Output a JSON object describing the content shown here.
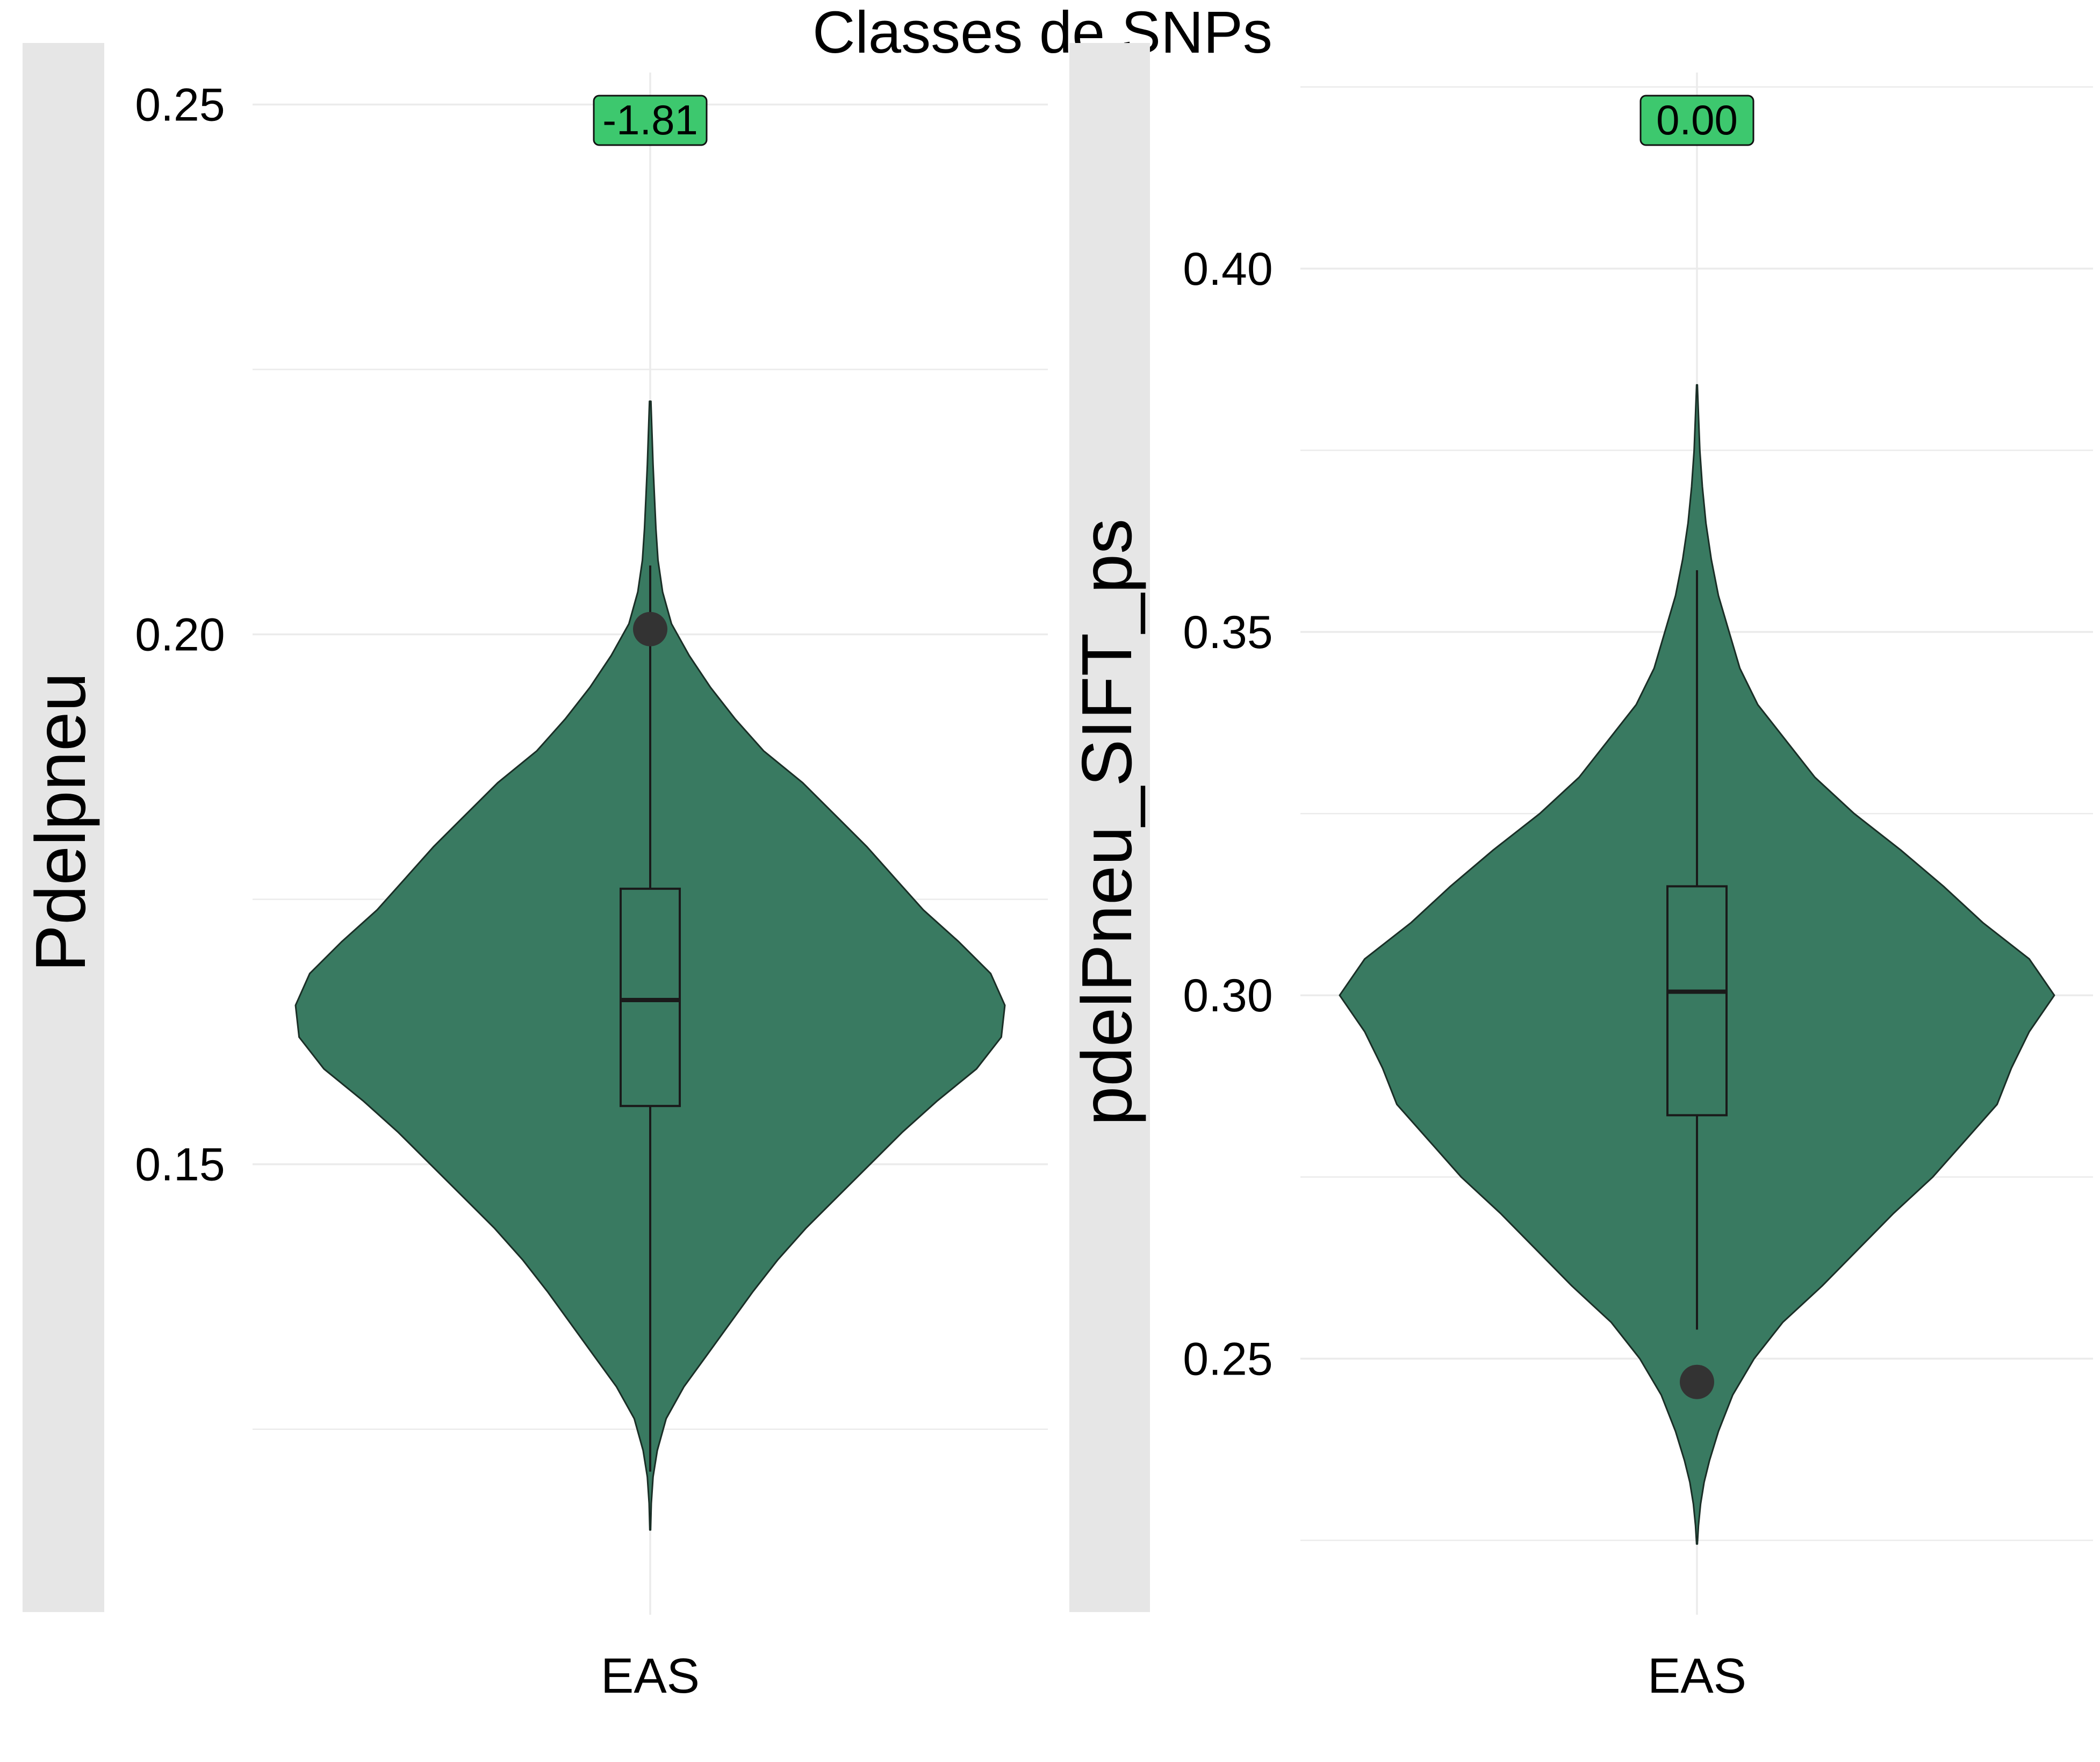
{
  "page": {
    "title": "Classes de SNPs"
  },
  "colors": {
    "violin_fill": "#397A61",
    "violin_stroke": "#1a2e26",
    "label_fill": "#3DC86E",
    "point": "#333333",
    "strip": "#E6E6E6",
    "grid": "#EBEBEB"
  },
  "chart_data": [
    {
      "type": "violin",
      "title": "",
      "category": "EAS",
      "ylabel": "Pdelpneu",
      "ylim": [
        0.108,
        0.252
      ],
      "yticks": [
        0.15,
        0.2,
        0.25
      ],
      "ytick_labels": [
        "0.15",
        "0.20",
        "0.25"
      ],
      "grid": true,
      "annotation": "-1.81",
      "point": 0.2005,
      "box": {
        "lower_whisker": 0.121,
        "q1": 0.1555,
        "median": 0.1655,
        "q3": 0.176,
        "upper_whisker": 0.2065
      },
      "density": {
        "y": [
          0.1155,
          0.118,
          0.1205,
          0.123,
          0.126,
          0.129,
          0.132,
          0.135,
          0.138,
          0.141,
          0.144,
          0.147,
          0.15,
          0.153,
          0.156,
          0.159,
          0.162,
          0.165,
          0.168,
          0.171,
          0.174,
          0.177,
          0.18,
          0.183,
          0.186,
          0.189,
          0.192,
          0.195,
          0.198,
          0.201,
          0.204,
          0.207,
          0.21,
          0.213,
          0.216,
          0.219,
          0.222
        ],
        "halfwidth": [
          0.001,
          0.003,
          0.008,
          0.02,
          0.045,
          0.095,
          0.16,
          0.225,
          0.29,
          0.36,
          0.44,
          0.53,
          0.62,
          0.71,
          0.81,
          0.92,
          0.99,
          1.0,
          0.96,
          0.87,
          0.77,
          0.69,
          0.61,
          0.52,
          0.43,
          0.32,
          0.24,
          0.17,
          0.11,
          0.06,
          0.035,
          0.022,
          0.016,
          0.012,
          0.008,
          0.005,
          0.002
        ]
      }
    },
    {
      "type": "violin",
      "title": "",
      "category": "EAS",
      "ylabel": "pdelPneu_SIFT_ps",
      "ylim": [
        0.2155,
        0.4255
      ],
      "yticks": [
        0.25,
        0.3,
        0.35,
        0.4
      ],
      "ytick_labels": [
        "0.25",
        "0.30",
        "0.35",
        "0.40"
      ],
      "grid": true,
      "annotation": "0.00",
      "point": 0.2468,
      "box": {
        "lower_whisker": 0.254,
        "q1": 0.2835,
        "median": 0.3005,
        "q3": 0.315,
        "upper_whisker": 0.3585
      },
      "density": {
        "y": [
          0.2245,
          0.227,
          0.23,
          0.233,
          0.236,
          0.24,
          0.245,
          0.25,
          0.255,
          0.26,
          0.265,
          0.27,
          0.275,
          0.28,
          0.285,
          0.29,
          0.295,
          0.3,
          0.305,
          0.31,
          0.315,
          0.32,
          0.325,
          0.33,
          0.335,
          0.34,
          0.345,
          0.35,
          0.355,
          0.36,
          0.365,
          0.37,
          0.375,
          0.38,
          0.384
        ],
        "halfwidth": [
          0.001,
          0.004,
          0.01,
          0.02,
          0.035,
          0.06,
          0.1,
          0.16,
          0.24,
          0.35,
          0.45,
          0.55,
          0.66,
          0.75,
          0.84,
          0.88,
          0.93,
          1.0,
          0.93,
          0.8,
          0.69,
          0.57,
          0.44,
          0.33,
          0.25,
          0.17,
          0.12,
          0.09,
          0.06,
          0.04,
          0.025,
          0.015,
          0.008,
          0.004,
          0.001
        ]
      }
    }
  ]
}
